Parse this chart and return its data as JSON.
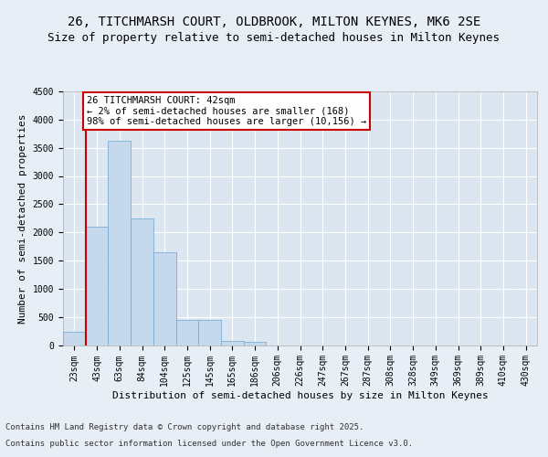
{
  "title_line1": "26, TITCHMARSH COURT, OLDBROOK, MILTON KEYNES, MK6 2SE",
  "title_line2": "Size of property relative to semi-detached houses in Milton Keynes",
  "xlabel": "Distribution of semi-detached houses by size in Milton Keynes",
  "ylabel": "Number of semi-detached properties",
  "categories": [
    "23sqm",
    "43sqm",
    "63sqm",
    "84sqm",
    "104sqm",
    "125sqm",
    "145sqm",
    "165sqm",
    "186sqm",
    "206sqm",
    "226sqm",
    "247sqm",
    "267sqm",
    "287sqm",
    "308sqm",
    "328sqm",
    "349sqm",
    "369sqm",
    "389sqm",
    "410sqm",
    "430sqm"
  ],
  "values": [
    230,
    2100,
    3620,
    2250,
    1640,
    450,
    450,
    80,
    50,
    0,
    0,
    0,
    0,
    0,
    0,
    0,
    0,
    0,
    0,
    0,
    0
  ],
  "bar_color": "#c5d8ec",
  "bar_edge_color": "#7aafd4",
  "vline_color": "#cc0000",
  "annotation_title": "26 TITCHMARSH COURT: 42sqm",
  "annotation_line1": "← 2% of semi-detached houses are smaller (168)",
  "annotation_line2": "98% of semi-detached houses are larger (10,156) →",
  "annotation_box_color": "#cc0000",
  "ylim": [
    0,
    4500
  ],
  "yticks": [
    0,
    500,
    1000,
    1500,
    2000,
    2500,
    3000,
    3500,
    4000,
    4500
  ],
  "background_color": "#e8eef5",
  "plot_bg_color": "#dce6f0",
  "footer_line1": "Contains HM Land Registry data © Crown copyright and database right 2025.",
  "footer_line2": "Contains public sector information licensed under the Open Government Licence v3.0.",
  "title_fontsize": 10,
  "subtitle_fontsize": 9,
  "axis_label_fontsize": 8,
  "tick_fontsize": 7,
  "annotation_fontsize": 7.5,
  "footer_fontsize": 6.5
}
